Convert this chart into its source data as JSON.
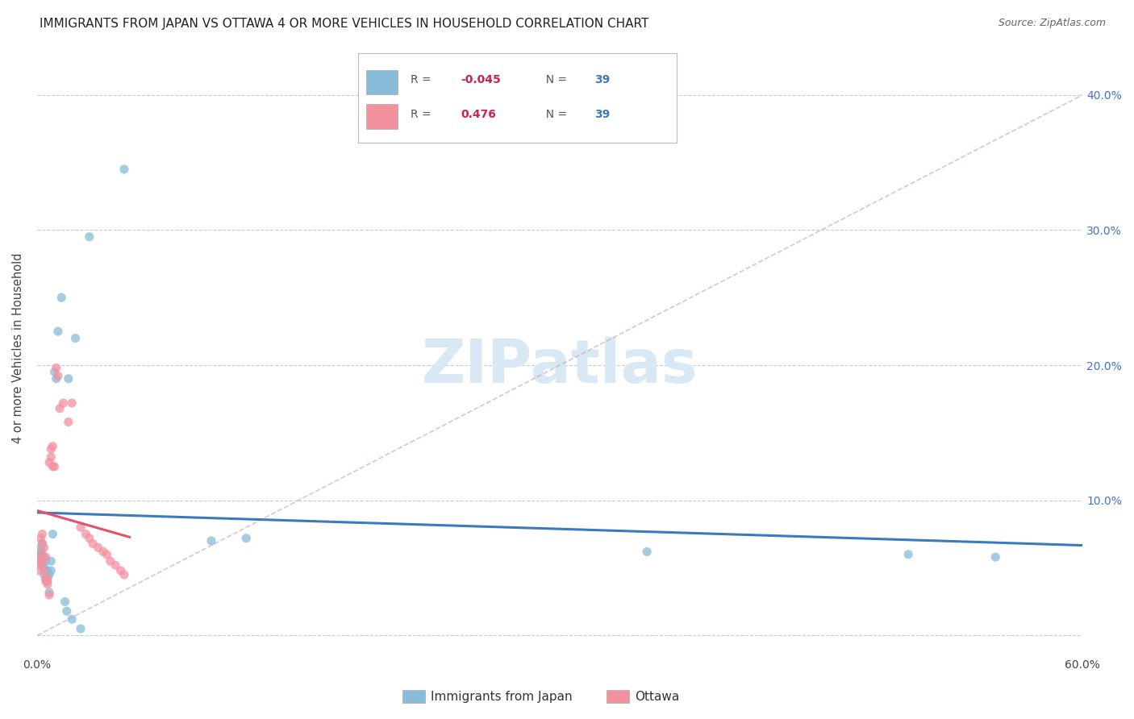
{
  "title": "IMMIGRANTS FROM JAPAN VS OTTAWA 4 OR MORE VEHICLES IN HOUSEHOLD CORRELATION CHART",
  "source": "Source: ZipAtlas.com",
  "ylabel": "4 or more Vehicles in Household",
  "xlim": [
    0.0,
    0.6
  ],
  "ylim": [
    -0.015,
    0.44
  ],
  "yticks": [
    0.0,
    0.1,
    0.2,
    0.3,
    0.4
  ],
  "right_ytick_labels": [
    "",
    "10.0%",
    "20.0%",
    "30.0%",
    "40.0%"
  ],
  "xticks": [
    0.0,
    0.1,
    0.2,
    0.3,
    0.4,
    0.5,
    0.6
  ],
  "xtick_labels": [
    "0.0%",
    "",
    "",
    "",
    "",
    "",
    "60.0%"
  ],
  "japan_color": "#89bcd8",
  "ottawa_color": "#f4919f",
  "japan_line_color": "#3a7abf",
  "ottawa_line_color": "#e8506a",
  "ref_line_color": "#d4aab8",
  "background_color": "#ffffff",
  "scatter_alpha": 0.75,
  "scatter_size": 65,
  "title_fontsize": 11,
  "axis_label_fontsize": 10.5,
  "tick_fontsize": 10,
  "right_tick_color": "#4472c4",
  "watermark_color": "#d8e8f4",
  "japan_x": [
    0.001,
    0.001,
    0.002,
    0.002,
    0.002,
    0.003,
    0.003,
    0.003,
    0.003,
    0.004,
    0.004,
    0.004,
    0.005,
    0.005,
    0.005,
    0.006,
    0.006,
    0.007,
    0.007,
    0.008,
    0.008,
    0.009,
    0.01,
    0.011,
    0.012,
    0.014,
    0.018,
    0.022,
    0.03,
    0.1,
    0.12,
    0.35,
    0.5,
    0.55,
    0.016,
    0.017,
    0.02,
    0.025,
    0.05
  ],
  "japan_y": [
    0.06,
    0.055,
    0.062,
    0.058,
    0.065,
    0.06,
    0.055,
    0.052,
    0.068,
    0.058,
    0.05,
    0.045,
    0.055,
    0.048,
    0.042,
    0.048,
    0.04,
    0.045,
    0.032,
    0.055,
    0.048,
    0.075,
    0.195,
    0.19,
    0.225,
    0.25,
    0.19,
    0.22,
    0.295,
    0.07,
    0.072,
    0.062,
    0.06,
    0.058,
    0.025,
    0.018,
    0.012,
    0.005,
    0.345
  ],
  "ottawa_x": [
    0.001,
    0.001,
    0.002,
    0.002,
    0.002,
    0.003,
    0.003,
    0.003,
    0.004,
    0.004,
    0.005,
    0.005,
    0.005,
    0.006,
    0.006,
    0.007,
    0.007,
    0.008,
    0.008,
    0.009,
    0.009,
    0.01,
    0.011,
    0.012,
    0.013,
    0.015,
    0.018,
    0.02,
    0.025,
    0.028,
    0.03,
    0.032,
    0.035,
    0.038,
    0.04,
    0.042,
    0.045,
    0.048,
    0.05
  ],
  "ottawa_y": [
    0.055,
    0.048,
    0.052,
    0.06,
    0.072,
    0.055,
    0.068,
    0.075,
    0.048,
    0.065,
    0.042,
    0.058,
    0.04,
    0.038,
    0.042,
    0.03,
    0.128,
    0.132,
    0.138,
    0.125,
    0.14,
    0.125,
    0.198,
    0.192,
    0.168,
    0.172,
    0.158,
    0.172,
    0.08,
    0.075,
    0.072,
    0.068,
    0.065,
    0.062,
    0.06,
    0.055,
    0.052,
    0.048,
    0.045
  ]
}
